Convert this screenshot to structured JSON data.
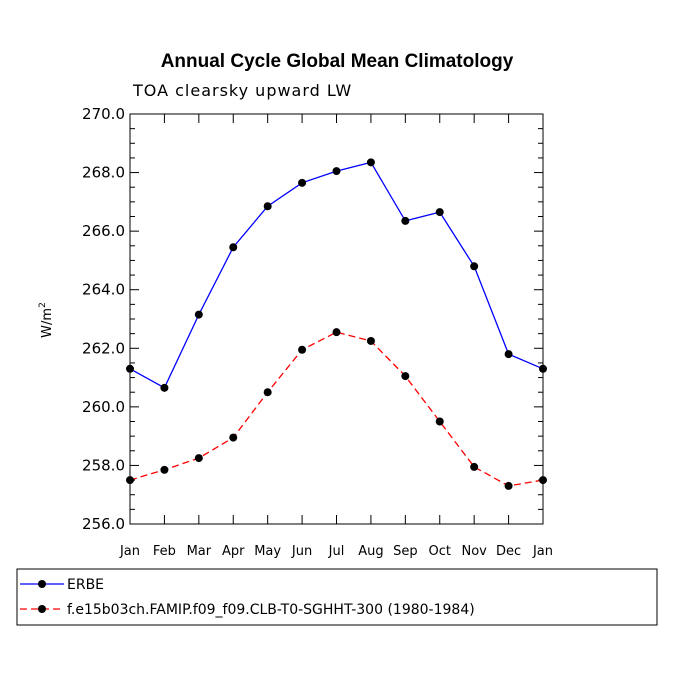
{
  "chart_data": {
    "type": "line",
    "title": "Annual Cycle Global Mean Climatology",
    "subtitle": "TOA clearsky upward LW",
    "xlabel": "",
    "ylabel": "W/m",
    "ylabel_superscript": "2",
    "categories": [
      "Jan",
      "Feb",
      "Mar",
      "Apr",
      "May",
      "Jun",
      "Jul",
      "Aug",
      "Sep",
      "Oct",
      "Nov",
      "Dec",
      "Jan"
    ],
    "ylim": [
      256.0,
      270.0
    ],
    "yticks": [
      "256.0",
      "258.0",
      "260.0",
      "262.0",
      "264.0",
      "266.0",
      "268.0",
      "270.0"
    ],
    "ytick_values": [
      256.0,
      258.0,
      260.0,
      262.0,
      264.0,
      266.0,
      268.0,
      270.0
    ],
    "grid": false,
    "legend_position": "bottom-left",
    "series": [
      {
        "name": "ERBE",
        "color": "#0000ff",
        "dash": "solid",
        "values": [
          261.3,
          260.65,
          263.15,
          265.45,
          266.85,
          267.65,
          268.05,
          268.35,
          266.35,
          266.65,
          264.8,
          261.8,
          261.3
        ]
      },
      {
        "name": "f.e15b03ch.FAMIP.f09_f09.CLB-T0-SGHHT-300 (1980-1984)",
        "color": "#ff0000",
        "dash": "dashed",
        "values": [
          257.5,
          257.85,
          258.25,
          258.95,
          260.5,
          261.95,
          262.55,
          262.25,
          261.05,
          259.5,
          257.95,
          257.3,
          257.5
        ]
      }
    ]
  }
}
